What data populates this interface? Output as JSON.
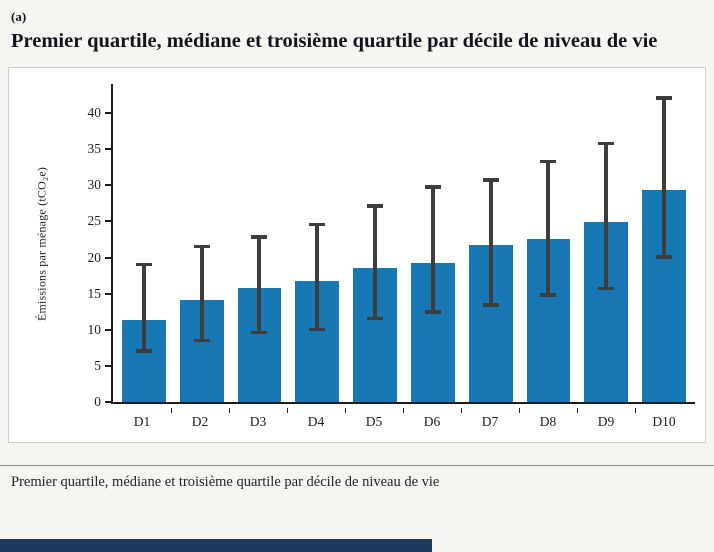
{
  "page": {
    "panel_label": "(a)",
    "title": "Premier quartile, médiane et troisième quartile par décile de niveau de vie",
    "caption": "Premier quartile, médiane et troisième quartile par décile de niveau de vie"
  },
  "chart_data": {
    "type": "bar",
    "title": "Premier quartile, médiane et troisième quartile par décile de niveau de vie",
    "xlabel": "",
    "ylabel": "Émissions par ménage (tCO₂e)",
    "categories": [
      "D1",
      "D2",
      "D3",
      "D4",
      "D5",
      "D6",
      "D7",
      "D8",
      "D9",
      "D10"
    ],
    "series": [
      {
        "name": "Médiane",
        "values": [
          11.4,
          14.1,
          15.8,
          16.7,
          18.6,
          19.3,
          21.8,
          22.6,
          24.9,
          29.4
        ]
      },
      {
        "name": "Premier quartile",
        "values": [
          6.8,
          8.3,
          9.4,
          9.8,
          11.3,
          12.2,
          13.2,
          14.6,
          15.5,
          19.8
        ]
      },
      {
        "name": "Troisième quartile",
        "values": [
          19.3,
          21.8,
          23.1,
          24.8,
          27.4,
          30.0,
          31.0,
          33.5,
          36.0,
          42.3
        ]
      }
    ],
    "yticks": [
      0,
      5,
      10,
      15,
      20,
      25,
      30,
      35,
      40
    ],
    "ylim": [
      0,
      44
    ],
    "grid": false,
    "legend": "none",
    "colors": {
      "bar": "#1878b4",
      "whisker": "#3d3d3d",
      "axis": "#1c1c1c"
    }
  }
}
